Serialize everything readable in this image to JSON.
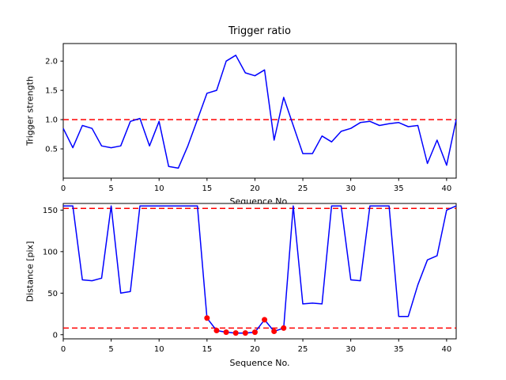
{
  "figure": {
    "background": "#ffffff"
  },
  "chart_data": [
    {
      "type": "line",
      "name": "trigger-ratio-plot",
      "title": "Trigger ratio",
      "xlabel": "Sequence No.",
      "ylabel": "Trigger strength",
      "xlim": [
        0,
        41
      ],
      "ylim": [
        0,
        2.3
      ],
      "xticks": [
        0,
        5,
        10,
        15,
        20,
        25,
        30,
        35,
        40
      ],
      "xticklabels": [
        "0",
        "5",
        "10",
        "15",
        "20",
        "25",
        "30",
        "35",
        "40"
      ],
      "yticks": [
        0.5,
        1.0,
        1.5,
        2.0
      ],
      "yticklabels": [
        "0.5",
        "1.0",
        "1.5",
        "2.0"
      ],
      "grid": false,
      "legend": null,
      "series": [
        {
          "name": "trigger-strength-line",
          "color": "#0000ff",
          "x": [
            0,
            1,
            2,
            3,
            4,
            5,
            6,
            7,
            8,
            9,
            10,
            11,
            12,
            13,
            14,
            15,
            16,
            17,
            18,
            19,
            20,
            21,
            22,
            23,
            24,
            25,
            26,
            27,
            28,
            29,
            30,
            31,
            32,
            33,
            34,
            35,
            36,
            37,
            38,
            39,
            40,
            41
          ],
          "y": [
            0.85,
            0.52,
            0.9,
            0.85,
            0.55,
            0.52,
            0.55,
            0.97,
            1.02,
            0.55,
            0.97,
            0.2,
            0.17,
            0.55,
            1.0,
            1.45,
            1.5,
            2.0,
            2.1,
            1.8,
            1.75,
            1.85,
            0.65,
            1.38,
            0.9,
            0.42,
            0.42,
            0.72,
            0.62,
            0.8,
            0.85,
            0.95,
            0.97,
            0.9,
            0.93,
            0.95,
            0.88,
            0.9,
            0.25,
            0.65,
            0.22,
            1.0
          ]
        }
      ],
      "thresholds": [
        {
          "name": "trigger-threshold-line",
          "y": 1.0,
          "color": "#ff0000",
          "style": "dashed"
        }
      ]
    },
    {
      "type": "line",
      "name": "distance-plot",
      "title": "",
      "xlabel": "Sequence No.",
      "ylabel": "Distance [pix]",
      "xlim": [
        0,
        41
      ],
      "ylim": [
        -5,
        158
      ],
      "xticks": [
        0,
        5,
        10,
        15,
        20,
        25,
        30,
        35,
        40
      ],
      "xticklabels": [
        "0",
        "5",
        "10",
        "15",
        "20",
        "25",
        "30",
        "35",
        "40"
      ],
      "yticks": [
        0,
        50,
        100,
        150
      ],
      "yticklabels": [
        "0",
        "50",
        "100",
        "150"
      ],
      "grid": false,
      "legend": null,
      "series": [
        {
          "name": "distance-line",
          "color": "#0000ff",
          "x": [
            0,
            1,
            2,
            3,
            4,
            5,
            6,
            7,
            8,
            9,
            10,
            11,
            12,
            13,
            14,
            15,
            16,
            17,
            18,
            19,
            20,
            21,
            22,
            23,
            24,
            25,
            26,
            27,
            28,
            29,
            30,
            31,
            32,
            33,
            34,
            35,
            36,
            37,
            38,
            39,
            40,
            41
          ],
          "y": [
            155,
            155,
            66,
            65,
            68,
            155,
            50,
            52,
            155,
            155,
            155,
            155,
            155,
            155,
            155,
            20,
            5,
            3,
            2,
            2,
            3,
            18,
            4,
            8,
            155,
            37,
            38,
            37,
            155,
            155,
            66,
            65,
            155,
            155,
            155,
            22,
            22,
            60,
            90,
            95,
            150,
            155
          ]
        }
      ],
      "thresholds": [
        {
          "name": "upper-distance-threshold-line",
          "y": 152,
          "color": "#ff0000",
          "style": "dashed"
        },
        {
          "name": "lower-distance-threshold-line",
          "y": 8,
          "color": "#ff0000",
          "style": "dashed"
        }
      ],
      "markers": {
        "name": "trigger-point",
        "color": "#ff0000",
        "x": [
          15,
          16,
          17,
          18,
          19,
          20,
          21,
          22,
          23
        ],
        "y": [
          20,
          5,
          3,
          2,
          2,
          3,
          18,
          4,
          8
        ]
      }
    }
  ]
}
